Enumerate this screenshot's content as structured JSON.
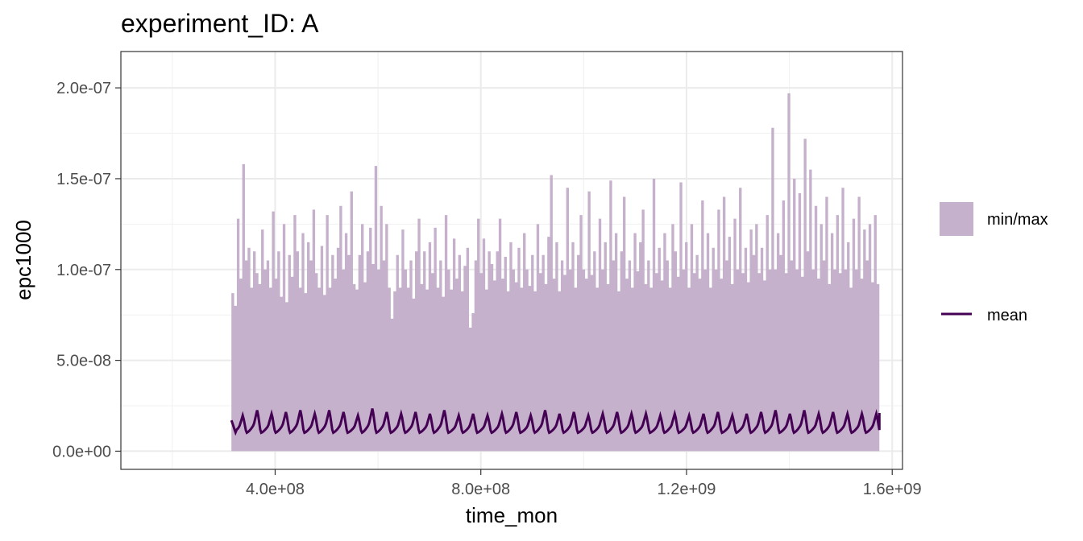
{
  "chart_data": {
    "type": "area",
    "title": "experiment_ID: A",
    "xlabel": "time_mon",
    "ylabel": "epc1000",
    "xlim": [
      100000000,
      1620000000
    ],
    "ylim": [
      -1e-08,
      2.2e-07
    ],
    "x_ticks": [
      {
        "value": 400000000,
        "label": "4.0e+08"
      },
      {
        "value": 800000000,
        "label": "8.0e+08"
      },
      {
        "value": 1200000000,
        "label": "1.2e+09"
      },
      {
        "value": 1600000000,
        "label": "1.6e+09"
      }
    ],
    "y_ticks": [
      {
        "value": 0,
        "label": "0.0e+00"
      },
      {
        "value": 5e-08,
        "label": "5.0e-08"
      },
      {
        "value": 1e-07,
        "label": "1.0e-07"
      },
      {
        "value": 1.5e-07,
        "label": "1.5e-07"
      },
      {
        "value": 2e-07,
        "label": "2.0e-07"
      }
    ],
    "grid": true,
    "legend_position": "right",
    "series": [
      {
        "name": "min/max",
        "kind": "ribbon",
        "color": "#c5b1cb"
      },
      {
        "name": "mean",
        "kind": "line",
        "color": "#440154"
      }
    ],
    "x_start": 315000000,
    "x_end": 1575000000,
    "ribbon_max": [
      8.7e-08,
      8e-08,
      1.28e-07,
      9.5e-08,
      1.58e-07,
      1.05e-07,
      1.12e-07,
      9e-08,
      1.1e-07,
      9.8e-08,
      9.2e-08,
      1.22e-07,
      1e-07,
      1.05e-07,
      9e-08,
      1.32e-07,
      9.5e-08,
      1.1e-07,
      8.5e-08,
      1.25e-07,
      8.2e-08,
      1.08e-07,
      9.6e-08,
      1.3e-07,
      1.1e-07,
      9e-08,
      1.2e-07,
      8.7e-08,
      1.15e-07,
      1.05e-07,
      1.33e-07,
      9.8e-08,
      9e-08,
      1.13e-07,
      8.6e-08,
      1.3e-07,
      9e-08,
      1.08e-07,
      9.5e-08,
      1.12e-07,
      1.35e-07,
      1e-07,
      1.2e-07,
      1.08e-07,
      1.43e-07,
      9.2e-08,
      8.9e-08,
      1.08e-07,
      1.25e-07,
      9.3e-08,
      1.1e-07,
      1.23e-07,
      1.03e-07,
      1.57e-07,
      1e-07,
      1.35e-07,
      1.05e-07,
      1.25e-07,
      9e-08,
      7.3e-08,
      8.8e-08,
      1.08e-07,
      9e-08,
      1.22e-07,
      1e-07,
      9e-08,
      1.05e-07,
      8.4e-08,
      1.1e-07,
      1.28e-07,
      9.2e-08,
      1.1e-07,
      8.9e-08,
      1.15e-07,
      9.8e-08,
      1.23e-07,
      9e-08,
      1.05e-07,
      8.5e-08,
      1.3e-07,
      1e-07,
      8.9e-08,
      1.17e-07,
      9.5e-08,
      1.08e-07,
      8.8e-08,
      1.02e-07,
      1.12e-07,
      6.8e-08,
      7.6e-08,
      1.05e-07,
      1.28e-07,
      9.8e-08,
      1.17e-07,
      8.9e-08,
      1.1e-07,
      1.03e-07,
      9.4e-08,
      1.1e-07,
      1.28e-07,
      9.5e-08,
      1.07e-07,
      8.8e-08,
      1.15e-07,
      1e-07,
      9.3e-08,
      1.12e-07,
      9e-08,
      1.2e-07,
      1e-07,
      9.1e-08,
      1.08e-07,
      8.8e-08,
      1.25e-07,
      9.8e-08,
      1.08e-07,
      9.2e-08,
      1.18e-07,
      1.52e-07,
      9.5e-08,
      1.15e-07,
      8.8e-08,
      1.05e-07,
      9.7e-08,
      1.45e-07,
      1e-07,
      1.15e-07,
      9e-08,
      1.08e-07,
      1.3e-07,
      1e-07,
      9.5e-08,
      1.43e-07,
      9.7e-08,
      1.1e-07,
      9e-08,
      1.28e-07,
      1e-07,
      1.15e-07,
      9.2e-08,
      1.49e-07,
      1.05e-07,
      1.2e-07,
      8.8e-08,
      1.1e-07,
      1.4e-07,
      9.5e-08,
      1.05e-07,
      9e-08,
      1.2e-07,
      9.9e-08,
      1.15e-07,
      1.33e-07,
      9.2e-08,
      1.05e-07,
      9e-08,
      1.5e-07,
      9.8e-08,
      1.12e-07,
      9.4e-08,
      1.2e-07,
      1.05e-07,
      9e-08,
      1.25e-07,
      1.1e-07,
      9.6e-08,
      1.48e-07,
      1e-07,
      1.15e-07,
      9e-08,
      1.25e-07,
      9.8e-08,
      1.08e-07,
      9.5e-08,
      1.38e-07,
      1e-07,
      1.2e-07,
      9e-08,
      1.12e-07,
      1e-07,
      1.33e-07,
      9.5e-08,
      1.4e-07,
      1.05e-07,
      1.18e-07,
      9.2e-08,
      1.28e-07,
      1e-07,
      1.45e-07,
      9.8e-08,
      1.12e-07,
      9.3e-08,
      1.22e-07,
      1.08e-07,
      1.25e-07,
      9.8e-08,
      1.12e-07,
      9.4e-08,
      1.3e-07,
      1e-07,
      1.78e-07,
      1e-07,
      1.2e-07,
      1.08e-07,
      1.38e-07,
      9.8e-08,
      1.97e-07,
      1.05e-07,
      1.5e-07,
      1e-07,
      1.42e-07,
      9.6e-08,
      1.72e-07,
      1.1e-07,
      1.55e-07,
      1e-07,
      1.35e-07,
      9.5e-08,
      1.25e-07,
      1.05e-07,
      1.4e-07,
      9.2e-08,
      1.2e-07,
      1e-07,
      1.3e-07,
      9.8e-08,
      1.45e-07,
      1e-07,
      1.15e-07,
      9e-08,
      1.28e-07,
      1e-07,
      1.4e-07,
      9.5e-08,
      1.22e-07,
      1.05e-07,
      1.25e-07,
      9.3e-08,
      1.3e-07,
      9.2e-08
    ],
    "ribbon_min": 0,
    "mean_period": 28000000,
    "mean_base": 1e-08,
    "mean_peak": [
      2e-08,
      2.3e-08,
      2.1e-08,
      2.2e-08,
      2.3e-08,
      2.1e-08,
      2.3e-08,
      2.2e-08,
      2e-08,
      2.4e-08,
      2.2e-08,
      2.1e-08,
      2.2e-08,
      2.1e-08,
      2.3e-08,
      2e-08,
      2.1e-08,
      2e-08,
      2.1e-08,
      2.2e-08,
      2e-08,
      2.3e-08,
      2.1e-08,
      2.2e-08,
      2e-08,
      2.1e-08,
      2.2e-08,
      2.1e-08,
      2.1e-08,
      2e-08,
      2.1e-08,
      2e-08,
      2.1e-08,
      2.2e-08,
      2e-08,
      2.1e-08,
      2.2e-08,
      2.3e-08,
      2.1e-08,
      2.3e-08,
      2.1e-08,
      2.2e-08,
      2.1e-08,
      2.1e-08,
      2.1e-08,
      2.1e-08
    ],
    "mean_start": 1.7e-08,
    "mean_end": 2.1e-08
  }
}
